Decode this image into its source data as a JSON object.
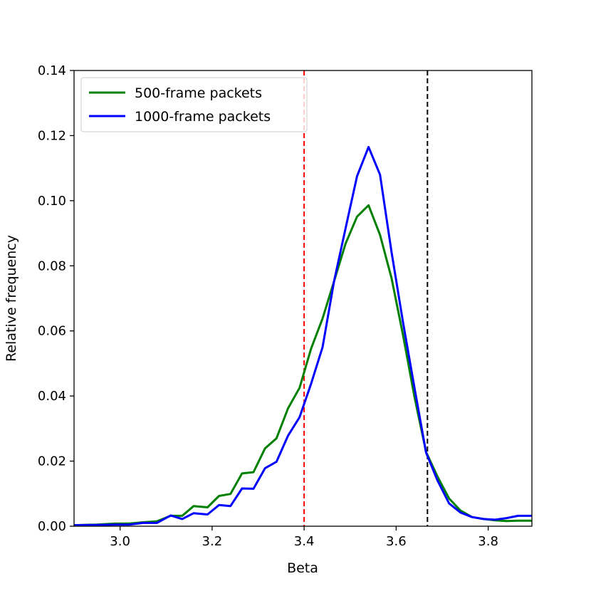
{
  "chart_data": {
    "type": "line",
    "title": "",
    "xlabel": "Beta",
    "ylabel": "Relative frequency",
    "xlim": [
      2.9,
      3.895
    ],
    "ylim": [
      0,
      0.14
    ],
    "x_ticks": [
      3.0,
      3.2,
      3.4,
      3.6,
      3.8
    ],
    "x_tick_labels": [
      "3.0",
      "3.2",
      "3.4",
      "3.6",
      "3.8"
    ],
    "y_ticks": [
      0,
      0.02,
      0.04,
      0.06,
      0.08,
      0.1,
      0.12,
      0.14
    ],
    "y_tick_labels": [
      "0.00",
      "0.02",
      "0.04",
      "0.06",
      "0.08",
      "0.10",
      "0.12",
      "0.14"
    ],
    "grid": false,
    "legend_position": "top-left",
    "series": [
      {
        "name": "500-frame packets",
        "color": "#008000",
        "x": [
          2.9,
          2.95,
          2.99,
          3.02,
          3.05,
          3.08,
          3.11,
          3.135,
          3.16,
          3.19,
          3.215,
          3.24,
          3.265,
          3.29,
          3.315,
          3.34,
          3.365,
          3.39,
          3.415,
          3.44,
          3.465,
          3.49,
          3.515,
          3.54,
          3.565,
          3.59,
          3.615,
          3.64,
          3.665,
          3.69,
          3.715,
          3.74,
          3.765,
          3.79,
          3.815,
          3.84,
          3.865,
          3.895
        ],
        "y": [
          0.0003,
          0.0005,
          0.0008,
          0.0008,
          0.0012,
          0.0015,
          0.0032,
          0.0032,
          0.0062,
          0.0058,
          0.0093,
          0.0099,
          0.0162,
          0.0166,
          0.0239,
          0.027,
          0.0362,
          0.0425,
          0.0545,
          0.0638,
          0.0752,
          0.0868,
          0.0951,
          0.0986,
          0.0895,
          0.0762,
          0.0586,
          0.0396,
          0.0228,
          0.0152,
          0.0085,
          0.0048,
          0.0028,
          0.0022,
          0.0018,
          0.0016,
          0.0017,
          0.0017
        ]
      },
      {
        "name": "1000-frame packets",
        "color": "#0000ff",
        "x": [
          2.9,
          2.95,
          2.99,
          3.02,
          3.05,
          3.08,
          3.11,
          3.135,
          3.16,
          3.19,
          3.215,
          3.24,
          3.265,
          3.29,
          3.315,
          3.34,
          3.365,
          3.39,
          3.415,
          3.44,
          3.465,
          3.49,
          3.515,
          3.54,
          3.565,
          3.59,
          3.615,
          3.64,
          3.665,
          3.69,
          3.715,
          3.74,
          3.765,
          3.79,
          3.815,
          3.84,
          3.865,
          3.895
        ],
        "y": [
          0.0003,
          0.0004,
          0.0005,
          0.0005,
          0.001,
          0.001,
          0.0033,
          0.0022,
          0.004,
          0.0036,
          0.0065,
          0.0062,
          0.0116,
          0.0115,
          0.0178,
          0.0198,
          0.0278,
          0.0335,
          0.0437,
          0.055,
          0.0752,
          0.0915,
          0.1075,
          0.1165,
          0.108,
          0.0842,
          0.0625,
          0.0424,
          0.0226,
          0.014,
          0.007,
          0.0042,
          0.0028,
          0.0022,
          0.002,
          0.0025,
          0.0032,
          0.0032
        ]
      }
    ],
    "vlines": [
      {
        "x": 3.4,
        "color": "#ff0000",
        "style": "dashed"
      },
      {
        "x": 3.668,
        "color": "#000000",
        "style": "dashed"
      }
    ]
  }
}
